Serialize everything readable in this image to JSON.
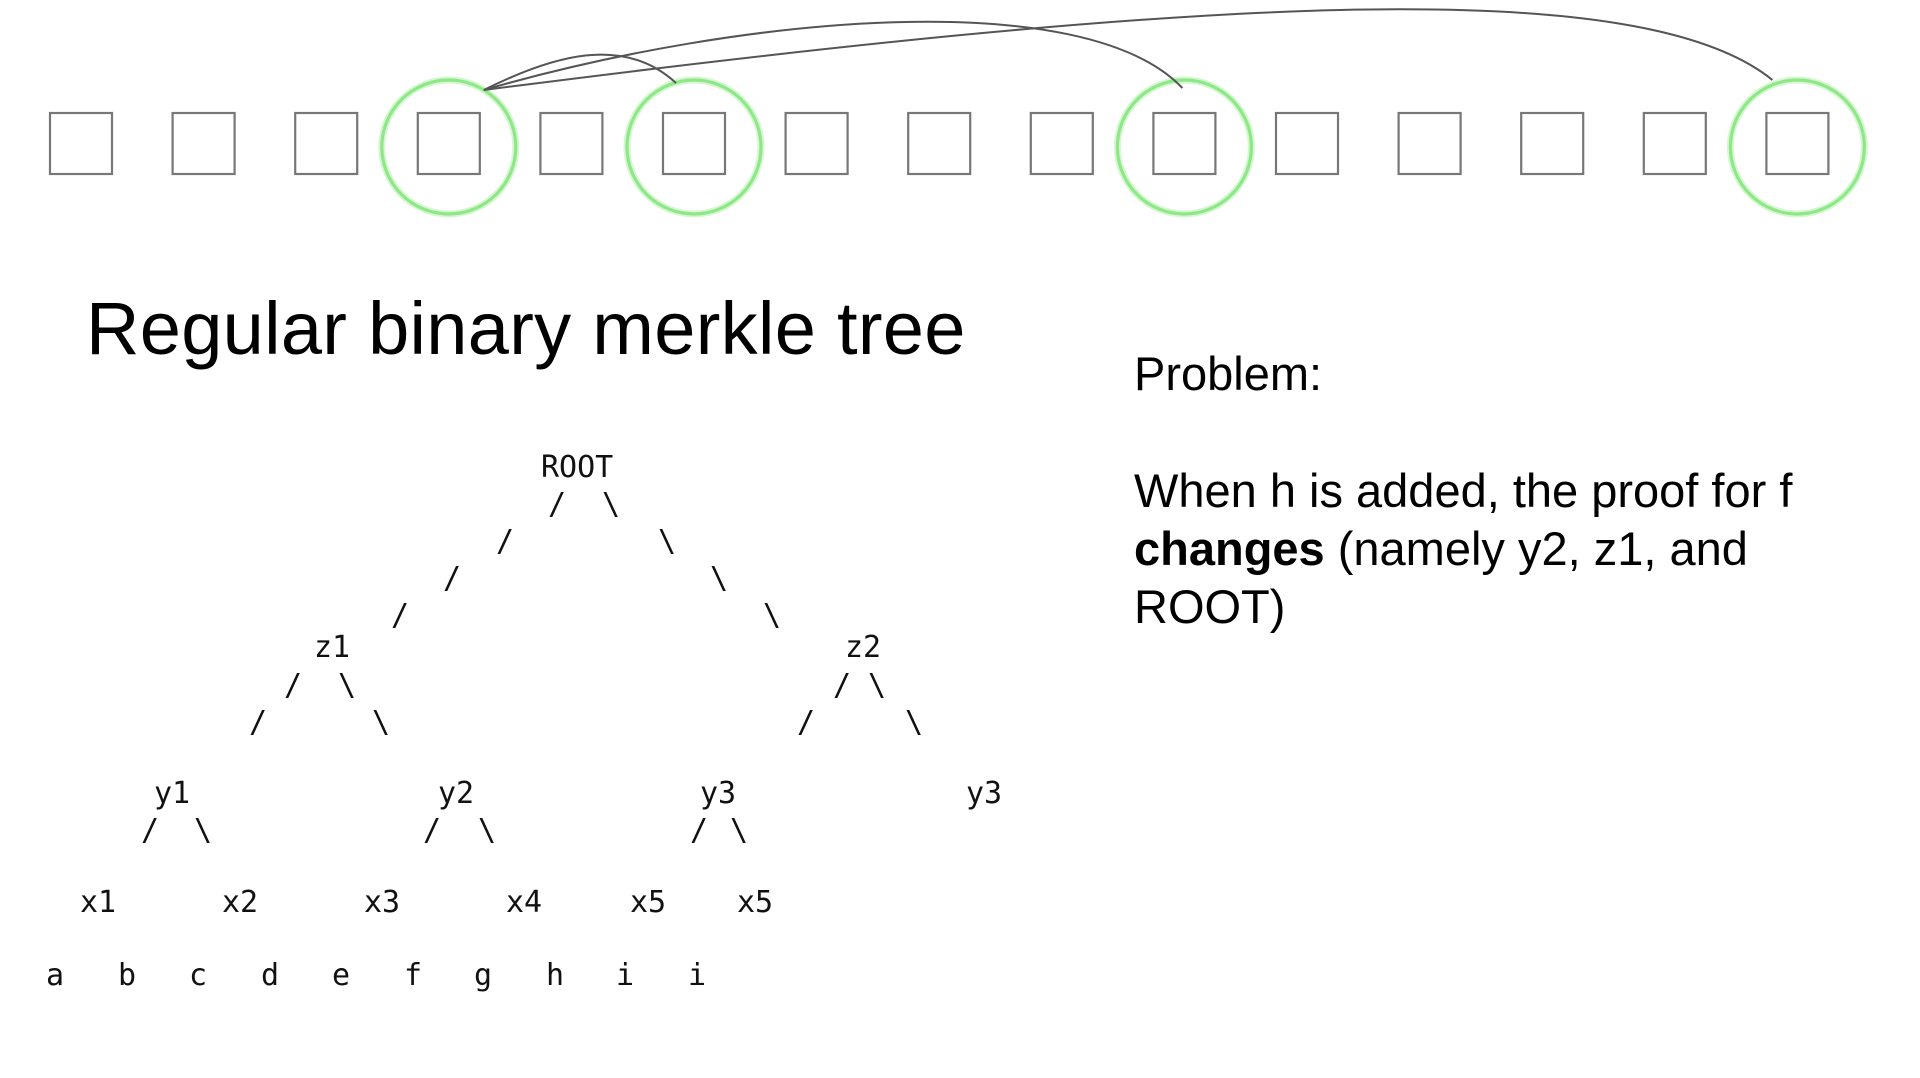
{
  "slide": {
    "title": "Regular binary merkle tree",
    "problem_heading": "Problem:",
    "problem_body": {
      "before": "When h is added, the proof for f ",
      "emphasis": "changes",
      "after": " (namely y2, z1, and ROOT)"
    }
  },
  "top_row": {
    "box_count": 15,
    "highlighted_boxes": [
      4,
      6,
      10,
      15
    ],
    "ring_color": "#8ee887",
    "links": [
      {
        "from": 4,
        "to": 6
      },
      {
        "from": 4,
        "to": 10
      },
      {
        "from": 4,
        "to": 15
      }
    ]
  },
  "tree": {
    "lines": [
      "            ROOT",
      "           /   \\",
      "         /       \\",
      "       /           \\",
      "     /               \\",
      "    z1                z2",
      "  /   \\             /   \\",
      " /      \\          /      \\",
      "y1       y2      y3        y3",
      "/  \\    /  \\    /  \\",
      "x1  x2  x3  x4  x5  x5",
      "a b c d e f g h i i"
    ]
  }
}
